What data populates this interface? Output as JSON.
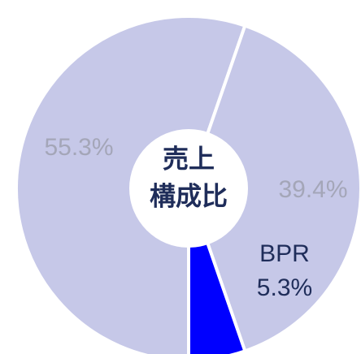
{
  "chart_data": {
    "type": "donut",
    "center_label": [
      "売上",
      "構成比"
    ],
    "categories": [
      null,
      null,
      "BPR"
    ],
    "values": [
      55.3,
      39.4,
      5.3
    ],
    "value_labels": [
      "55.3%",
      "39.4%",
      "5.3%"
    ],
    "colors": [
      "#c6c8e8",
      "#c6c8e8",
      "#0000ff"
    ],
    "label_colors": [
      "#a4a6b8",
      "#a4a6b8",
      "#1f2d5a"
    ],
    "start_angle": 180,
    "direction": "clockwise"
  }
}
